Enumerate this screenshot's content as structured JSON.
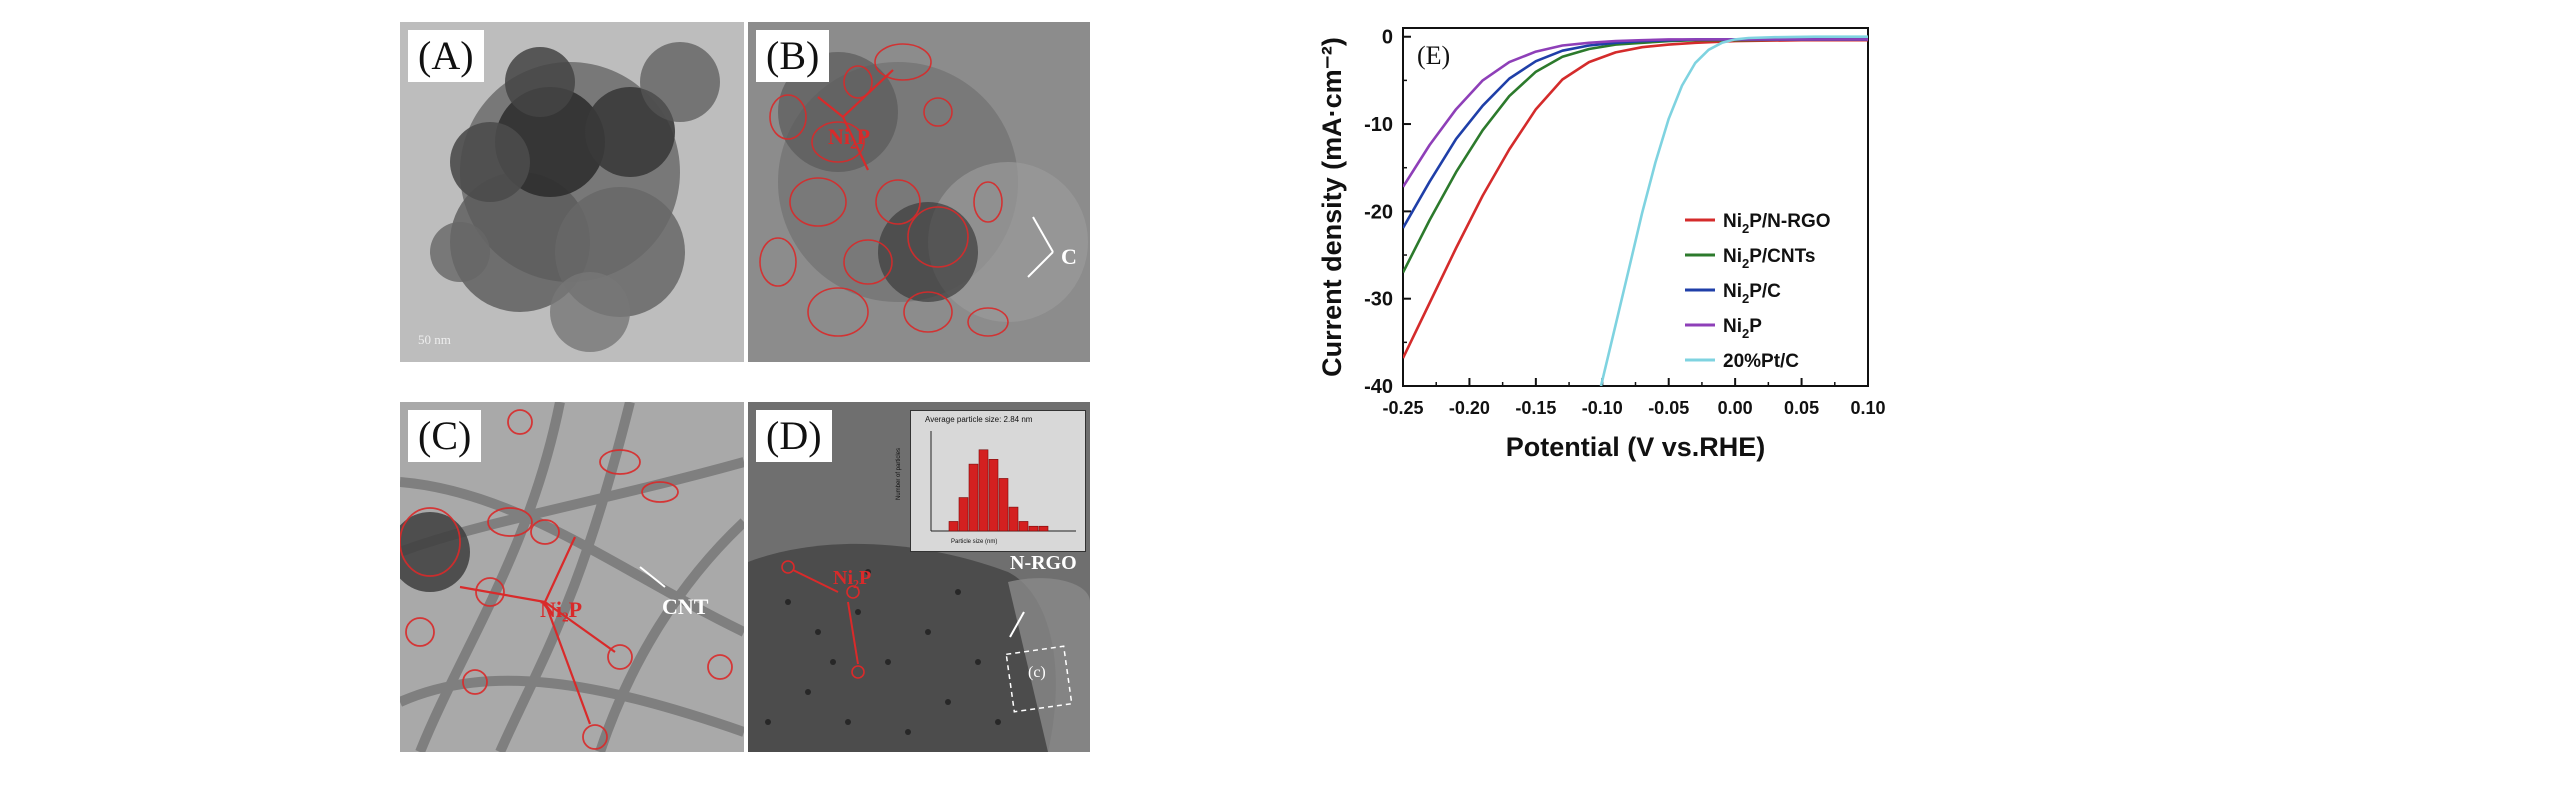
{
  "panels": {
    "A": {
      "label": "(A)",
      "scale": "50 nm"
    },
    "B": {
      "label": "(B)",
      "ni2p": "Ni₂P",
      "c": "C"
    },
    "C": {
      "label": "(C)",
      "ni2p": "Ni₂P",
      "cnt": "CNT"
    },
    "D": {
      "label": "(D)",
      "ni2p": "Ni₂P",
      "nrgo": "N-RGO",
      "box": "(c)",
      "inset_title": "Average particle size: 2.84 nm",
      "inset_ylabel": "Number of particles",
      "inset_xlabel": "Particle size (nm)",
      "inset_bars": [
        2,
        7,
        14,
        17,
        15,
        11,
        5,
        2,
        1,
        1
      ]
    }
  },
  "chart_data": {
    "type": "line",
    "panel_label": "(E)",
    "title": "",
    "xlabel": "Potential (V vs.RHE)",
    "ylabel": "Current density (mA·cm⁻²)",
    "xlim": [
      -0.25,
      0.1
    ],
    "ylim": [
      -40,
      1
    ],
    "xticks": [
      -0.25,
      -0.2,
      -0.15,
      -0.1,
      -0.05,
      0.0,
      0.05,
      0.1
    ],
    "xtick_labels": [
      "-0.25",
      "-0.20",
      "-0.15",
      "-0.10",
      "-0.05",
      "0.00",
      "0.05",
      "0.10"
    ],
    "yticks": [
      0,
      -10,
      -20,
      -30,
      -40
    ],
    "ytick_labels": [
      "0",
      "-10",
      "-20",
      "-30",
      "-40"
    ],
    "legend_position": "bottom-right",
    "series": [
      {
        "name": "Ni2P/N-RGO",
        "sub_base": "Ni",
        "sub": "2",
        "sub_rest": "P/N-RGO",
        "color": "#d42b2b",
        "x": [
          -0.25,
          -0.23,
          -0.21,
          -0.19,
          -0.17,
          -0.15,
          -0.13,
          -0.11,
          -0.09,
          -0.07,
          -0.05,
          -0.03,
          0.0,
          0.05,
          0.1
        ],
        "y": [
          -36.8,
          -30.5,
          -24.2,
          -18.2,
          -12.9,
          -8.3,
          -4.9,
          -2.9,
          -1.8,
          -1.2,
          -0.9,
          -0.7,
          -0.5,
          -0.4,
          -0.4
        ]
      },
      {
        "name": "Ni2P/CNTs",
        "sub_base": "Ni",
        "sub": "2",
        "sub_rest": "P/CNTs",
        "color": "#2c7a2c",
        "x": [
          -0.25,
          -0.23,
          -0.21,
          -0.19,
          -0.17,
          -0.15,
          -0.13,
          -0.11,
          -0.09,
          -0.07,
          -0.05,
          -0.03,
          0.0,
          0.05,
          0.1
        ],
        "y": [
          -27.0,
          -21.0,
          -15.5,
          -10.7,
          -6.8,
          -4.0,
          -2.3,
          -1.4,
          -0.9,
          -0.7,
          -0.5,
          -0.4,
          -0.4,
          -0.3,
          -0.3
        ]
      },
      {
        "name": "Ni2P/C",
        "sub_base": "Ni",
        "sub": "2",
        "sub_rest": "P/C",
        "color": "#1f3fa8",
        "x": [
          -0.25,
          -0.23,
          -0.21,
          -0.19,
          -0.17,
          -0.15,
          -0.13,
          -0.11,
          -0.09,
          -0.07,
          -0.05,
          -0.03,
          0.0,
          0.05,
          0.1
        ],
        "y": [
          -21.9,
          -16.6,
          -11.7,
          -7.9,
          -4.8,
          -2.8,
          -1.6,
          -1.0,
          -0.7,
          -0.5,
          -0.4,
          -0.3,
          -0.3,
          -0.3,
          -0.3
        ]
      },
      {
        "name": "Ni2P",
        "sub_base": "Ni",
        "sub": "2",
        "sub_rest": "P",
        "color": "#8e3fb8",
        "x": [
          -0.25,
          -0.23,
          -0.21,
          -0.19,
          -0.17,
          -0.15,
          -0.13,
          -0.11,
          -0.09,
          -0.07,
          -0.05,
          -0.03,
          0.0,
          0.05,
          0.1
        ],
        "y": [
          -17.2,
          -12.4,
          -8.3,
          -5.0,
          -2.9,
          -1.7,
          -1.0,
          -0.7,
          -0.5,
          -0.4,
          -0.3,
          -0.3,
          -0.3,
          -0.3,
          -0.3
        ]
      },
      {
        "name": "20%Pt/C",
        "sub_base": "20%Pt/C",
        "sub": "",
        "sub_rest": "",
        "color": "#7fd3e0",
        "x": [
          -0.101,
          -0.09,
          -0.08,
          -0.07,
          -0.06,
          -0.05,
          -0.04,
          -0.03,
          -0.02,
          -0.01,
          0.0,
          0.01,
          0.03,
          0.06,
          0.1
        ],
        "y": [
          -40.0,
          -33.0,
          -26.6,
          -20.2,
          -14.4,
          -9.4,
          -5.6,
          -3.0,
          -1.5,
          -0.7,
          -0.3,
          -0.15,
          -0.05,
          0.0,
          0.0
        ]
      }
    ]
  }
}
